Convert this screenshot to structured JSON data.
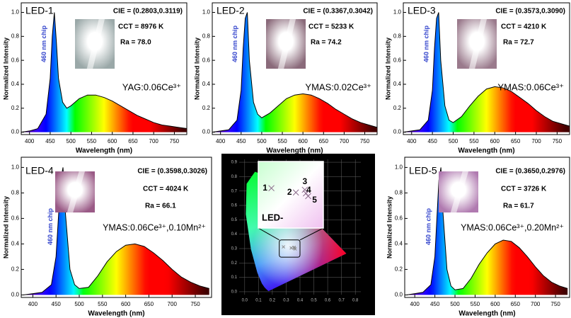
{
  "chart_data": [
    {
      "type": "line",
      "title": "LED-1",
      "cie": "CIE = (0.2803,0.3119)",
      "cct": "CCT = 8976 K",
      "ra": "Ra = 78.0",
      "phosphor": "YAG:0.06Ce³⁺",
      "chip_label": "460 nm chip",
      "x_label": "Wavelength (nm)",
      "y_label": "Normalized Intensity",
      "color": "#000000",
      "xlim": [
        380,
        780
      ],
      "ylim": [
        -0.02,
        1.08
      ],
      "xticks": [
        400,
        450,
        500,
        550,
        600,
        650,
        700,
        750
      ],
      "yticks": [
        {
          "value": 0,
          "label": "0.0"
        },
        0.2,
        0.4,
        0.6,
        0.8,
        {
          "value": 1,
          "label": "1.0"
        }
      ],
      "x": [
        380,
        400,
        420,
        440,
        450,
        455,
        460,
        465,
        470,
        480,
        490,
        500,
        520,
        540,
        560,
        580,
        600,
        620,
        640,
        660,
        680,
        700,
        720,
        740,
        760,
        780
      ],
      "values": [
        0,
        0.01,
        0.03,
        0.15,
        0.45,
        0.8,
        1.0,
        0.75,
        0.45,
        0.25,
        0.2,
        0.22,
        0.28,
        0.31,
        0.31,
        0.29,
        0.26,
        0.22,
        0.18,
        0.14,
        0.11,
        0.08,
        0.06,
        0.05,
        0.04,
        0.03
      ]
    },
    {
      "type": "line",
      "title": "LED-2",
      "cie": "CIE = (0.3367,0.3042)",
      "cct": "CCT = 5233 K",
      "ra": "Ra = 74.2",
      "phosphor": "YMAS:0.02Ce³⁺",
      "chip_label": "460 nm chip",
      "x_label": "Wavelength (nm)",
      "y_label": "Normalized Intensity",
      "color": "#000000",
      "xlim": [
        380,
        780
      ],
      "ylim": [
        -0.02,
        1.08
      ],
      "xticks": [
        400,
        450,
        500,
        550,
        600,
        650,
        700,
        750
      ],
      "yticks": [
        {
          "value": 0,
          "label": "0.0"
        },
        0.2,
        0.4,
        0.6,
        0.8,
        {
          "value": 1,
          "label": "1.0"
        }
      ],
      "x": [
        380,
        400,
        420,
        440,
        450,
        455,
        460,
        465,
        470,
        480,
        490,
        500,
        520,
        540,
        560,
        580,
        600,
        620,
        640,
        660,
        680,
        700,
        720,
        740,
        760,
        780
      ],
      "values": [
        0,
        0.01,
        0.02,
        0.1,
        0.35,
        0.7,
        0.95,
        1.0,
        0.6,
        0.25,
        0.15,
        0.12,
        0.16,
        0.22,
        0.28,
        0.31,
        0.32,
        0.31,
        0.28,
        0.24,
        0.19,
        0.15,
        0.11,
        0.08,
        0.06,
        0.04
      ]
    },
    {
      "type": "line",
      "title": "LED-3",
      "cie": "CIE = (0.3573,0.3090)",
      "cct": "CCT = 4210 K",
      "ra": "Ra = 72.7",
      "phosphor": "YMAS:0.06Ce³⁺",
      "chip_label": "460 nm chip",
      "x_label": "Wavelength (nm)",
      "y_label": "Normalized Intensity",
      "color": "#000000",
      "xlim": [
        380,
        780
      ],
      "ylim": [
        -0.02,
        1.08
      ],
      "xticks": [
        400,
        450,
        500,
        550,
        600,
        650,
        700,
        750
      ],
      "yticks": [
        {
          "value": 0,
          "label": "0.0"
        },
        0.2,
        0.4,
        0.6,
        0.8,
        {
          "value": 1,
          "label": "1.0"
        }
      ],
      "x": [
        380,
        400,
        420,
        440,
        450,
        455,
        460,
        465,
        470,
        480,
        490,
        500,
        520,
        540,
        560,
        580,
        600,
        620,
        640,
        660,
        680,
        700,
        720,
        740,
        760,
        780
      ],
      "values": [
        0,
        0.01,
        0.02,
        0.1,
        0.35,
        0.7,
        0.95,
        1.0,
        0.6,
        0.22,
        0.1,
        0.08,
        0.13,
        0.22,
        0.3,
        0.36,
        0.38,
        0.37,
        0.34,
        0.29,
        0.24,
        0.18,
        0.13,
        0.09,
        0.07,
        0.05
      ]
    },
    {
      "type": "line",
      "title": "LED-4",
      "cie": "CIE = (0.3598,0.3026)",
      "cct": "CCT = 4024 K",
      "ra": "Ra = 66.1",
      "phosphor": "YMAS:0.06Ce³⁺,0.10Mn²⁺",
      "chip_label": "460 nm chip",
      "x_label": "Wavelength (nm)",
      "y_label": "Normalized Intensity",
      "color": "#000000",
      "xlim": [
        375,
        785
      ],
      "ylim": [
        -0.02,
        1.08
      ],
      "xticks": [
        400,
        450,
        500,
        550,
        600,
        650,
        700,
        750
      ],
      "yticks": [
        {
          "value": 0,
          "label": "0.0"
        },
        0.2,
        0.4,
        0.6,
        0.8,
        {
          "value": 1,
          "label": "1.0"
        }
      ],
      "x": [
        380,
        400,
        420,
        440,
        450,
        455,
        460,
        465,
        470,
        480,
        490,
        500,
        520,
        540,
        560,
        580,
        600,
        620,
        640,
        660,
        680,
        700,
        720,
        740,
        760,
        780
      ],
      "values": [
        0,
        0.01,
        0.02,
        0.08,
        0.3,
        0.6,
        0.9,
        1.0,
        0.65,
        0.2,
        0.08,
        0.05,
        0.06,
        0.15,
        0.26,
        0.34,
        0.39,
        0.4,
        0.38,
        0.33,
        0.27,
        0.2,
        0.14,
        0.1,
        0.07,
        0.05
      ]
    },
    {
      "type": "line",
      "title": "LED-5",
      "cie": "CIE = (0.3650,0.2976)",
      "cct": "CCT = 3726 K",
      "ra": "Ra = 61.7",
      "phosphor": "YMAS:0.06Ce³⁺,0.20Mn²⁺",
      "chip_label": "460 nm chip",
      "x_label": "Wavelength (nm)",
      "y_label": "Normalized Intensity",
      "color": "#000000",
      "xlim": [
        375,
        785
      ],
      "ylim": [
        -0.02,
        1.08
      ],
      "xticks": [
        400,
        450,
        500,
        550,
        600,
        650,
        700,
        750
      ],
      "yticks": [
        {
          "value": 0,
          "label": "0.0"
        },
        0.2,
        0.4,
        0.6,
        0.8,
        {
          "value": 1,
          "label": "1.0"
        }
      ],
      "x": [
        380,
        400,
        420,
        440,
        450,
        455,
        460,
        465,
        470,
        480,
        490,
        500,
        520,
        540,
        560,
        580,
        600,
        620,
        640,
        660,
        680,
        700,
        720,
        740,
        760,
        780
      ],
      "values": [
        0,
        0.01,
        0.02,
        0.08,
        0.3,
        0.6,
        0.9,
        1.0,
        0.65,
        0.2,
        0.07,
        0.04,
        0.05,
        0.13,
        0.24,
        0.33,
        0.4,
        0.43,
        0.42,
        0.37,
        0.3,
        0.22,
        0.15,
        0.1,
        0.07,
        0.05
      ]
    },
    {
      "type": "scatter",
      "inset_label": "LED-",
      "point_labels": [
        "1",
        "2",
        "3",
        "4",
        "5"
      ],
      "color": "#888888",
      "xlim": [
        -0.04,
        0.84
      ],
      "ylim": [
        -0.02,
        0.92
      ],
      "xticks": [
        {
          "value": 0,
          "label": "0.0"
        },
        0.1,
        0.2,
        0.3,
        0.4,
        0.5,
        0.6,
        0.7,
        0.8
      ],
      "yticks": [
        {
          "value": 0,
          "label": "0.0"
        },
        0.1,
        0.2,
        0.3,
        0.4,
        0.5,
        0.6,
        0.7,
        0.8,
        0.9
      ],
      "grid": true,
      "x": [
        0.2803,
        0.3367,
        0.3573,
        0.3598,
        0.365
      ],
      "values": [
        0.3119,
        0.3042,
        0.309,
        0.3026,
        0.2976
      ]
    }
  ]
}
